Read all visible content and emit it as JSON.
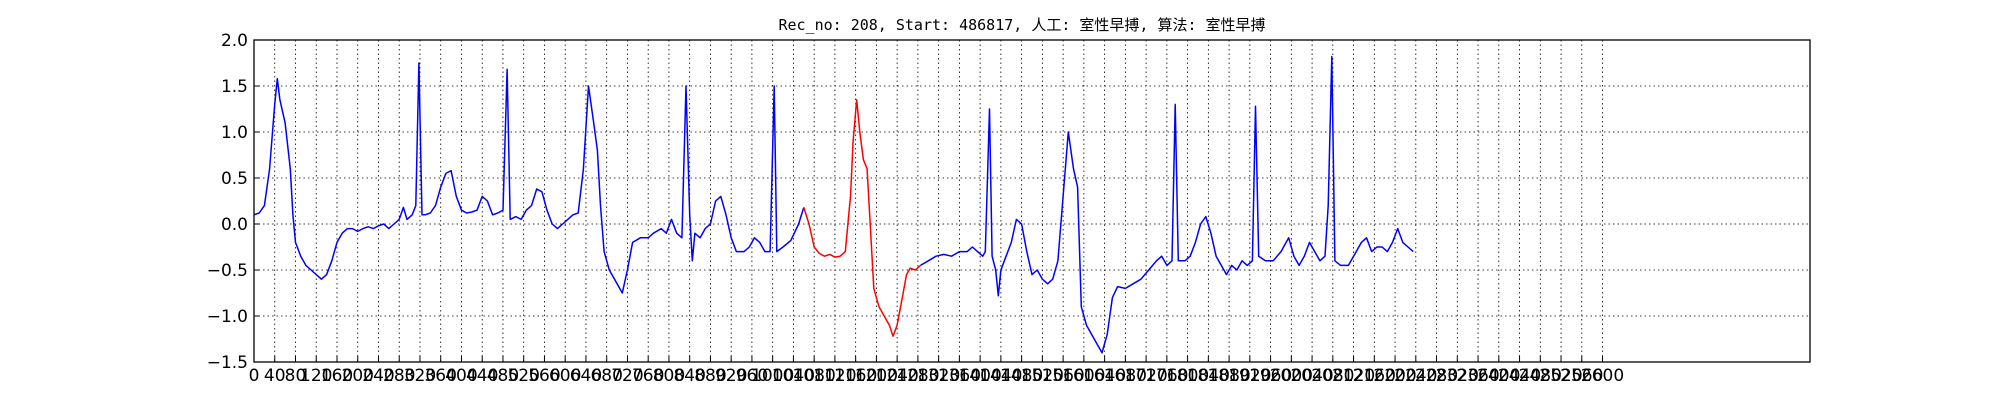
{
  "chart_data": {
    "type": "line",
    "title": "Rec_no: 208, Start: 486817, 人工: 室性早搏, 算法: 室性早搏",
    "xlabel": "",
    "ylabel": "",
    "xlim": [
      0,
      3000
    ],
    "ylim": [
      -1.5,
      2.0
    ],
    "grid": true,
    "yticks": [
      {
        "value": -1.5,
        "label": "−1.5"
      },
      {
        "value": -1.0,
        "label": "−1.0"
      },
      {
        "value": -0.5,
        "label": "−0.5"
      },
      {
        "value": 0.0,
        "label": "0.0"
      },
      {
        "value": 0.5,
        "label": "0.5"
      },
      {
        "value": 1.0,
        "label": "1.0"
      },
      {
        "value": 1.5,
        "label": "1.5"
      },
      {
        "value": 2.0,
        "label": "2.0"
      }
    ],
    "xtick_step": 40,
    "xticks": [
      "0",
      "40",
      "80",
      "120",
      "160",
      "200",
      "240",
      "280",
      "320",
      "360",
      "400",
      "440",
      "480",
      "520",
      "560",
      "600",
      "640",
      "680",
      "720",
      "760",
      "800",
      "840",
      "880",
      "920",
      "960",
      "1000",
      "1040",
      "1080",
      "1120",
      "1160",
      "1200",
      "1240",
      "1280",
      "1320",
      "1360",
      "1400",
      "1440",
      "1480",
      "1520",
      "1560",
      "1600",
      "1640",
      "1680",
      "1720",
      "1760",
      "1800",
      "1840",
      "1880",
      "1920",
      "1960",
      "2000",
      "2040",
      "2080",
      "2120",
      "2160",
      "2200",
      "2240",
      "2280",
      "2320",
      "2360",
      "2400",
      "2440",
      "2480",
      "2520",
      "2560",
      "2600"
    ],
    "series": [
      {
        "color": "#0000ff",
        "segments": [
          [
            [
              0,
              0.1
            ],
            [
              10,
              0.12
            ],
            [
              20,
              0.2
            ],
            [
              30,
              0.6
            ],
            [
              40,
              1.3
            ],
            [
              45,
              1.58
            ],
            [
              50,
              1.35
            ],
            [
              60,
              1.1
            ],
            [
              70,
              0.6
            ],
            [
              75,
              0.1
            ],
            [
              80,
              -0.2
            ],
            [
              90,
              -0.35
            ],
            [
              100,
              -0.45
            ],
            [
              110,
              -0.5
            ],
            [
              120,
              -0.55
            ],
            [
              130,
              -0.6
            ],
            [
              140,
              -0.55
            ],
            [
              150,
              -0.4
            ],
            [
              160,
              -0.2
            ],
            [
              170,
              -0.1
            ],
            [
              180,
              -0.05
            ],
            [
              190,
              -0.05
            ],
            [
              200,
              -0.08
            ],
            [
              210,
              -0.05
            ],
            [
              220,
              -0.03
            ],
            [
              230,
              -0.05
            ],
            [
              240,
              -0.02
            ],
            [
              250,
              0.0
            ],
            [
              260,
              -0.05
            ],
            [
              270,
              0.0
            ],
            [
              280,
              0.05
            ],
            [
              288,
              0.18
            ],
            [
              295,
              0.05
            ],
            [
              305,
              0.1
            ],
            [
              312,
              0.2
            ],
            [
              318,
              1.75
            ],
            [
              324,
              0.1
            ],
            [
              330,
              0.1
            ],
            [
              340,
              0.12
            ],
            [
              350,
              0.2
            ],
            [
              360,
              0.4
            ],
            [
              370,
              0.55
            ],
            [
              380,
              0.58
            ],
            [
              390,
              0.3
            ],
            [
              400,
              0.15
            ],
            [
              410,
              0.12
            ],
            [
              420,
              0.13
            ],
            [
              430,
              0.15
            ],
            [
              440,
              0.3
            ],
            [
              450,
              0.25
            ],
            [
              460,
              0.1
            ],
            [
              470,
              0.12
            ],
            [
              480,
              0.15
            ],
            [
              488,
              1.68
            ],
            [
              494,
              0.05
            ],
            [
              505,
              0.08
            ],
            [
              515,
              0.05
            ],
            [
              525,
              0.15
            ],
            [
              535,
              0.2
            ],
            [
              545,
              0.38
            ],
            [
              555,
              0.35
            ],
            [
              565,
              0.15
            ],
            [
              575,
              0.0
            ],
            [
              585,
              -0.05
            ],
            [
              595,
              0.0
            ],
            [
              605,
              0.05
            ],
            [
              615,
              0.1
            ],
            [
              625,
              0.12
            ],
            [
              635,
              0.6
            ],
            [
              645,
              1.5
            ],
            [
              655,
              1.1
            ],
            [
              662,
              0.8
            ],
            [
              668,
              0.2
            ],
            [
              675,
              -0.3
            ],
            [
              685,
              -0.5
            ],
            [
              700,
              -0.65
            ],
            [
              710,
              -0.75
            ],
            [
              720,
              -0.5
            ],
            [
              730,
              -0.2
            ],
            [
              745,
              -0.15
            ],
            [
              760,
              -0.15
            ],
            [
              770,
              -0.1
            ],
            [
              785,
              -0.05
            ],
            [
              795,
              -0.1
            ],
            [
              805,
              0.05
            ],
            [
              815,
              -0.1
            ],
            [
              825,
              -0.15
            ],
            [
              833,
              1.5
            ],
            [
              840,
              0.1
            ],
            [
              845,
              -0.4
            ],
            [
              850,
              -0.1
            ],
            [
              860,
              -0.15
            ],
            [
              870,
              -0.05
            ],
            [
              880,
              0.0
            ],
            [
              890,
              0.25
            ],
            [
              900,
              0.3
            ],
            [
              910,
              0.1
            ],
            [
              920,
              -0.15
            ],
            [
              930,
              -0.3
            ],
            [
              945,
              -0.3
            ],
            [
              955,
              -0.25
            ],
            [
              965,
              -0.15
            ],
            [
              975,
              -0.2
            ],
            [
              985,
              -0.3
            ],
            [
              995,
              -0.3
            ],
            [
              1003,
              1.5
            ],
            [
              1008,
              -0.3
            ],
            [
              1020,
              -0.25
            ],
            [
              1035,
              -0.18
            ],
            [
              1050,
              0.0
            ],
            [
              1060,
              0.18
            ]
          ]
        ]
      },
      {
        "color": "#ff0000",
        "segments": [
          [
            [
              1060,
              0.18
            ],
            [
              1070,
              0.0
            ],
            [
              1080,
              -0.25
            ],
            [
              1090,
              -0.32
            ],
            [
              1100,
              -0.35
            ],
            [
              1110,
              -0.33
            ],
            [
              1120,
              -0.36
            ],
            [
              1130,
              -0.35
            ],
            [
              1140,
              -0.3
            ],
            [
              1145,
              0.0
            ],
            [
              1150,
              0.3
            ],
            [
              1155,
              0.9
            ],
            [
              1162,
              1.35
            ],
            [
              1168,
              1.0
            ],
            [
              1175,
              0.7
            ],
            [
              1182,
              0.6
            ],
            [
              1188,
              0.0
            ],
            [
              1195,
              -0.7
            ],
            [
              1205,
              -0.9
            ],
            [
              1215,
              -1.0
            ],
            [
              1225,
              -1.1
            ],
            [
              1232,
              -1.22
            ],
            [
              1240,
              -1.1
            ],
            [
              1250,
              -0.8
            ],
            [
              1258,
              -0.55
            ],
            [
              1265,
              -0.48
            ],
            [
              1275,
              -0.5
            ],
            [
              1285,
              -0.45
            ]
          ]
        ]
      },
      {
        "color": "#0000ff",
        "segments": [
          [
            [
              1285,
              -0.45
            ],
            [
              1300,
              -0.4
            ],
            [
              1315,
              -0.35
            ],
            [
              1330,
              -0.33
            ],
            [
              1345,
              -0.35
            ],
            [
              1360,
              -0.3
            ],
            [
              1375,
              -0.3
            ],
            [
              1385,
              -0.25
            ],
            [
              1395,
              -0.3
            ],
            [
              1405,
              -0.35
            ],
            [
              1410,
              -0.3
            ],
            [
              1418,
              1.25
            ],
            [
              1423,
              -0.35
            ],
            [
              1430,
              -0.5
            ],
            [
              1435,
              -0.78
            ],
            [
              1440,
              -0.5
            ],
            [
              1450,
              -0.35
            ],
            [
              1460,
              -0.2
            ],
            [
              1470,
              0.05
            ],
            [
              1480,
              0.0
            ],
            [
              1490,
              -0.3
            ],
            [
              1500,
              -0.55
            ],
            [
              1510,
              -0.5
            ],
            [
              1520,
              -0.6
            ],
            [
              1530,
              -0.65
            ],
            [
              1540,
              -0.6
            ],
            [
              1550,
              -0.4
            ],
            [
              1560,
              0.3
            ],
            [
              1570,
              1.0
            ],
            [
              1580,
              0.6
            ],
            [
              1588,
              0.4
            ],
            [
              1595,
              -0.9
            ],
            [
              1605,
              -1.1
            ],
            [
              1615,
              -1.2
            ],
            [
              1625,
              -1.3
            ],
            [
              1635,
              -1.4
            ],
            [
              1645,
              -1.2
            ],
            [
              1655,
              -0.8
            ],
            [
              1665,
              -0.68
            ],
            [
              1680,
              -0.7
            ],
            [
              1695,
              -0.65
            ],
            [
              1710,
              -0.6
            ],
            [
              1725,
              -0.5
            ],
            [
              1740,
              -0.4
            ],
            [
              1750,
              -0.35
            ],
            [
              1760,
              -0.45
            ],
            [
              1770,
              -0.4
            ],
            [
              1776,
              1.3
            ],
            [
              1782,
              -0.4
            ],
            [
              1795,
              -0.4
            ],
            [
              1805,
              -0.35
            ],
            [
              1815,
              -0.2
            ],
            [
              1825,
              0.0
            ],
            [
              1835,
              0.08
            ],
            [
              1845,
              -0.1
            ],
            [
              1855,
              -0.35
            ],
            [
              1865,
              -0.45
            ],
            [
              1875,
              -0.55
            ],
            [
              1885,
              -0.45
            ],
            [
              1895,
              -0.5
            ],
            [
              1905,
              -0.4
            ],
            [
              1915,
              -0.45
            ],
            [
              1925,
              -0.4
            ],
            [
              1931,
              1.28
            ],
            [
              1937,
              -0.35
            ],
            [
              1950,
              -0.4
            ],
            [
              1965,
              -0.4
            ],
            [
              1980,
              -0.3
            ],
            [
              1995,
              -0.15
            ],
            [
              2005,
              -0.35
            ],
            [
              2015,
              -0.45
            ],
            [
              2025,
              -0.35
            ],
            [
              2035,
              -0.2
            ],
            [
              2045,
              -0.3
            ],
            [
              2055,
              -0.4
            ],
            [
              2065,
              -0.35
            ],
            [
              2071,
              0.2
            ],
            [
              2078,
              1.82
            ],
            [
              2084,
              -0.4
            ],
            [
              2095,
              -0.45
            ],
            [
              2110,
              -0.45
            ],
            [
              2125,
              -0.3
            ],
            [
              2135,
              -0.2
            ],
            [
              2145,
              -0.15
            ],
            [
              2155,
              -0.3
            ],
            [
              2165,
              -0.25
            ],
            [
              2175,
              -0.25
            ],
            [
              2185,
              -0.3
            ],
            [
              2195,
              -0.2
            ],
            [
              2205,
              -0.05
            ],
            [
              2215,
              -0.2
            ],
            [
              2225,
              -0.25
            ],
            [
              2235,
              -0.3
            ]
          ]
        ]
      }
    ]
  }
}
